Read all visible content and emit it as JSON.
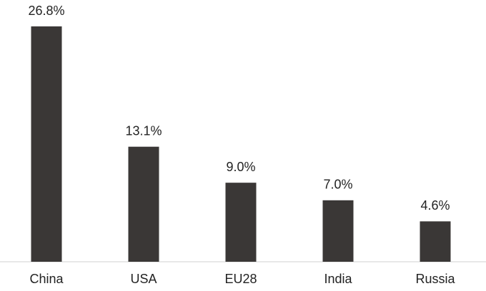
{
  "chart_data": {
    "type": "bar",
    "categories": [
      "China",
      "USA",
      "EU28",
      "India",
      "Russia"
    ],
    "values": [
      26.8,
      13.1,
      9.0,
      7.0,
      4.6
    ],
    "value_labels": [
      "26.8%",
      "13.1%",
      "9.0%",
      "7.0%",
      "4.6%"
    ],
    "color": "#3a3736"
  }
}
